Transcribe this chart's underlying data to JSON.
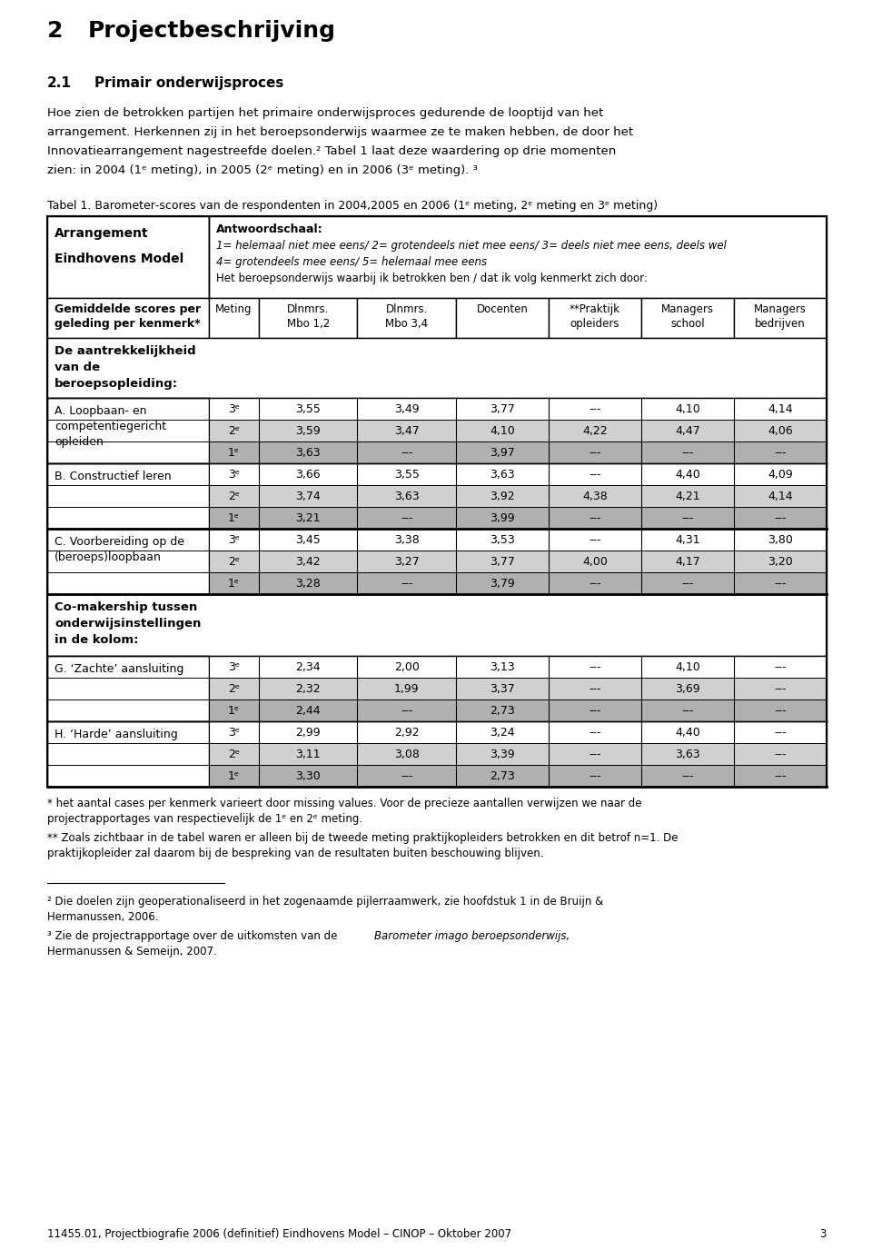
{
  "page_title_num": "2",
  "page_title_text": "Projectbeschrijving",
  "section_title_num": "2.1",
  "section_title_text": "Primair onderwijsproces",
  "para_lines": [
    "Hoe zien de betrokken partijen het primaire onderwijsproces gedurende de looptijd van het",
    "arrangement. Herkennen zij in het beroepsonderwijs waarmee ze te maken hebben, de door het",
    "Innovatiearrangement nagestreefde doelen.² Tabel 1 laat deze waardering op drie momenten",
    "zien: in 2004 (1ᵉ meting), in 2005 (2ᵉ meting) en in 2006 (3ᵉ meting). ³"
  ],
  "table_caption": "Tabel 1. Barometer­scores van de respondenten in 2004,2005 en 2006 (1ᵉ meting, 2ᵉ meting en 3ᵉ meting)",
  "antwoordschaal_title": "Antwoordschaal:",
  "antwoordschaal_line1": "1= helemaal niet mee eens/ 2= grotendeels niet mee eens/ 3= deels niet mee eens, deels wel",
  "antwoordschaal_line2": "4= grotendeels mee eens/ 5= helemaal mee eens",
  "antwoordschaal_line3": "Het beroepsonderwijs waarbij ik betrokken ben / dat ik volg kenmerkt zich door:",
  "left_label1": "Arrangement",
  "left_label2": "Eindhovens Model",
  "col_headers_line1": [
    "Meting",
    "Dlnmrs.",
    "Dlnmrs.",
    "Docenten",
    "**Praktijk",
    "Managers",
    "Managers"
  ],
  "col_headers_line2": [
    "",
    "Mbo 1,2",
    "Mbo 3,4",
    "",
    "opleiders",
    "school",
    "bedrijven"
  ],
  "row_label_col_line1": "Gemiddelde scores per",
  "row_label_col_line2": "geleding per kenmerk*",
  "section_A_label_lines": [
    "De aantrekkelijkheid",
    "van de",
    "beroepsopleiding:"
  ],
  "section_A_rows": [
    [
      "3ᵉ",
      "3,55",
      "3,49",
      "3,77",
      "---",
      "4,10",
      "4,14"
    ],
    [
      "2ᵉ",
      "3,59",
      "3,47",
      "4,10",
      "4,22",
      "4,47",
      "4,06"
    ],
    [
      "1ᵉ",
      "3,63",
      "---",
      "3,97",
      "---",
      "---",
      "---"
    ]
  ],
  "section_A_row_label_lines": [
    "A. Loopbaan- en",
    "competentiegericht",
    "opleiden"
  ],
  "section_B_rows": [
    [
      "3ᵉ",
      "3,66",
      "3,55",
      "3,63",
      "---",
      "4,40",
      "4,09"
    ],
    [
      "2ᵉ",
      "3,74",
      "3,63",
      "3,92",
      "4,38",
      "4,21",
      "4,14"
    ],
    [
      "1ᵉ",
      "3,21",
      "---",
      "3,99",
      "---",
      "---",
      "---"
    ]
  ],
  "section_B_row_label_lines": [
    "B. Constructief leren"
  ],
  "section_C_rows": [
    [
      "3ᵉ",
      "3,45",
      "3,38",
      "3,53",
      "---",
      "4,31",
      "3,80"
    ],
    [
      "2ᵉ",
      "3,42",
      "3,27",
      "3,77",
      "4,00",
      "4,17",
      "3,20"
    ],
    [
      "1ᵉ",
      "3,28",
      "---",
      "3,79",
      "---",
      "---",
      "---"
    ]
  ],
  "section_C_row_label_lines": [
    "C. Voorbereiding op de",
    "(beroeps)loopbaan"
  ],
  "section_co_label_lines": [
    "Co-makership tussen",
    "onderwijsinstellingen",
    "in de kolom:"
  ],
  "section_G_rows": [
    [
      "3ᵉ",
      "2,34",
      "2,00",
      "3,13",
      "---",
      "4,10",
      "---"
    ],
    [
      "2ᵉ",
      "2,32",
      "1,99",
      "3,37",
      "---",
      "3,69",
      "---"
    ],
    [
      "1ᵉ",
      "2,44",
      "---",
      "2,73",
      "---",
      "---",
      "---"
    ]
  ],
  "section_G_row_label_lines": [
    "G. ‘Zachte’ aansluiting"
  ],
  "section_H_rows": [
    [
      "3ᵉ",
      "2,99",
      "2,92",
      "3,24",
      "---",
      "4,40",
      "---"
    ],
    [
      "2ᵉ",
      "3,11",
      "3,08",
      "3,39",
      "---",
      "3,63",
      "---"
    ],
    [
      "1ᵉ",
      "3,30",
      "---",
      "2,73",
      "---",
      "---",
      "---"
    ]
  ],
  "section_H_row_label_lines": [
    "H. ‘Harde’ aansluiting"
  ],
  "fn1_lines": [
    "* het aantal cases per kenmerk varieert door missing values. Voor de precieze aantallen verwijzen we naar de",
    "projectrapportages van respectievelijk de 1ᵉ en 2ᵉ meting."
  ],
  "fn2_lines": [
    "** Zoals zichtbaar in de tabel waren er alleen bij de tweede meting praktijkopleiders betrokken en dit betrof n=1. De",
    "praktijkopleider zal daarom bij de bespreking van de resultaten buiten beschouwing blijven."
  ],
  "fn3_line1_normal": "² Die doelen zijn geoperationaliseerd in het zogenaamde pijlerraamwerk, zie hoofdstuk 1 in de Bruijn &",
  "fn3_line2": "Hermanussen, 2006.",
  "fn4_line1_normal": "³ Zie de projectrapportage over de uitkomsten van de ",
  "fn4_line1_italic": "Barometer imago beroepsonderwijs,",
  "fn4_line2": "Hermanussen & Semeijn, 2007.",
  "footer": "11455.01, Projectbiografie 2006 (definitief) Eindhovens Model – CINOP – Oktober 2007",
  "footer_page": "3",
  "bg_color": "#ffffff"
}
